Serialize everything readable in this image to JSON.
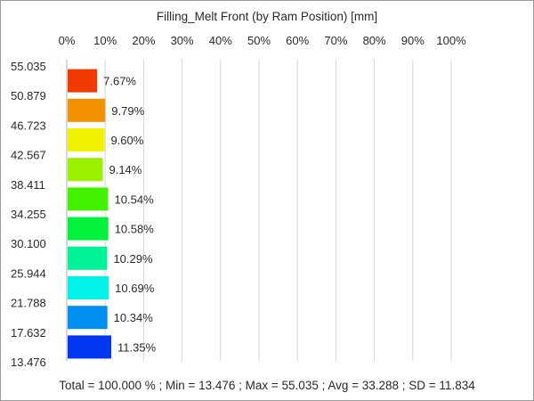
{
  "chart_data": {
    "type": "bar",
    "orientation": "horizontal",
    "title": "Filling_Melt Front (by Ram Position) [mm]",
    "x_ticks": [
      "0%",
      "10%",
      "20%",
      "30%",
      "40%",
      "50%",
      "60%",
      "70%",
      "80%",
      "90%",
      "100%"
    ],
    "xlim": [
      0,
      100
    ],
    "x_axis_position": "top",
    "y_ticks": [
      "55.035",
      "50.879",
      "46.723",
      "42.567",
      "38.411",
      "34.255",
      "30.100",
      "25.944",
      "21.788",
      "17.632",
      "13.476"
    ],
    "grid": true,
    "bins": [
      {
        "from": 50.879,
        "to": 55.035,
        "value": 7.67,
        "label": "7.67%",
        "color": "#f03a00"
      },
      {
        "from": 46.723,
        "to": 50.879,
        "value": 9.79,
        "label": "9.79%",
        "color": "#f29000"
      },
      {
        "from": 42.567,
        "to": 46.723,
        "value": 9.6,
        "label": "9.60%",
        "color": "#f2f200"
      },
      {
        "from": 38.411,
        "to": 42.567,
        "value": 9.14,
        "label": "9.14%",
        "color": "#9af200"
      },
      {
        "from": 34.255,
        "to": 38.411,
        "value": 10.54,
        "label": "10.54%",
        "color": "#43f200"
      },
      {
        "from": 30.1,
        "to": 34.255,
        "value": 10.58,
        "label": "10.58%",
        "color": "#00f23a"
      },
      {
        "from": 25.944,
        "to": 30.1,
        "value": 10.29,
        "label": "10.29%",
        "color": "#00f296"
      },
      {
        "from": 21.788,
        "to": 25.944,
        "value": 10.69,
        "label": "10.69%",
        "color": "#00f2e8"
      },
      {
        "from": 17.632,
        "to": 21.788,
        "value": 10.34,
        "label": "10.34%",
        "color": "#0090f2"
      },
      {
        "from": 13.476,
        "to": 17.632,
        "value": 11.35,
        "label": "11.35%",
        "color": "#0038f2"
      }
    ],
    "footer": "Total = 100.000 % ; Min = 13.476 ;   Max = 55.035 ;   Avg = 33.288 ;   SD = 11.834"
  }
}
